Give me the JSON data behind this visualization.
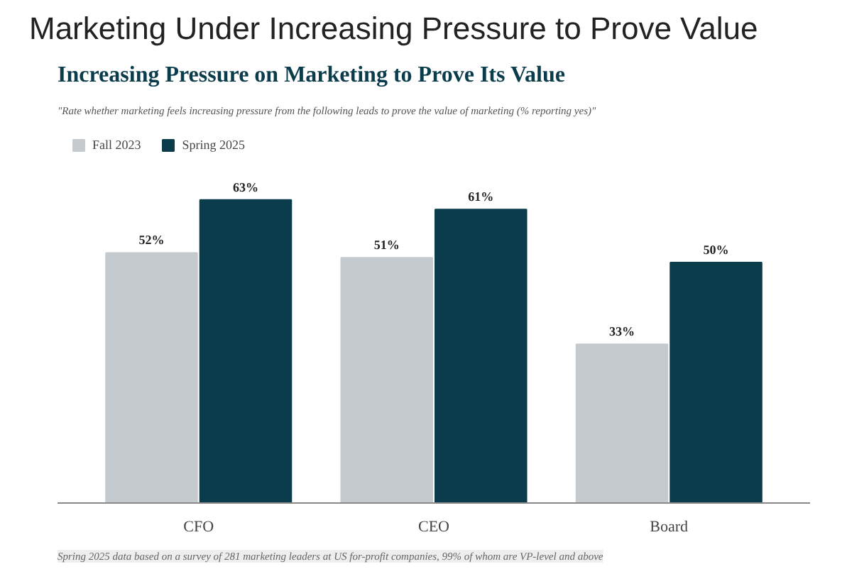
{
  "chart_data": {
    "type": "bar",
    "title": "Marketing Under Increasing Pressure to Prove Value",
    "subtitle": "Increasing Pressure on Marketing to Prove Its Value",
    "annotations": [
      "\"Rate whether marketing feels increasing pressure from the following leads to prove the value of marketing (% reporting yes)\"",
      "Spring 2025 data based on a survey of 281 marketing leaders at US for-profit companies, 99% of whom are VP-level and above"
    ],
    "categories": [
      "CFO",
      "CEO",
      "Board"
    ],
    "series": [
      {
        "name": "Fall 2023",
        "color": "#c5cace",
        "values": [
          52,
          51,
          33
        ],
        "value_labels": [
          "52%",
          "51%",
          "33%"
        ]
      },
      {
        "name": "Spring 2025",
        "color": "#0b3c4c",
        "values": [
          63,
          61,
          50
        ],
        "value_labels": [
          "63%",
          "61%",
          "50%"
        ]
      }
    ],
    "legend": "top left",
    "grid": false
  }
}
